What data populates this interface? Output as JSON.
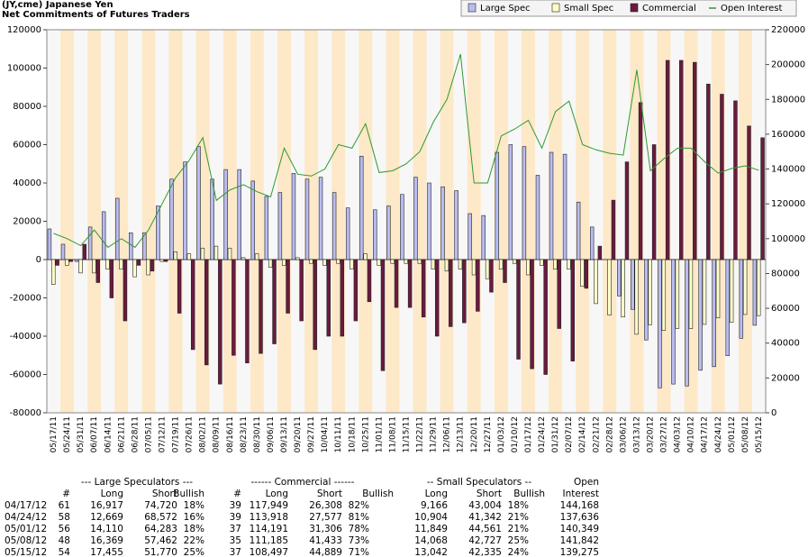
{
  "chart_data": {
    "type": "bar",
    "title": "(JY,cme) Japanese Yen",
    "subtitle": "Net Commitments of Futures Traders",
    "categories": [
      "05/17/11",
      "05/24/11",
      "05/31/11",
      "06/07/11",
      "06/14/11",
      "06/21/11",
      "06/28/11",
      "07/05/11",
      "07/12/11",
      "07/19/11",
      "07/26/11",
      "08/02/11",
      "08/09/11",
      "08/16/11",
      "08/23/11",
      "08/30/11",
      "09/06/11",
      "09/13/11",
      "09/20/11",
      "09/27/11",
      "10/04/11",
      "10/11/11",
      "10/18/11",
      "10/25/11",
      "11/01/11",
      "11/08/11",
      "11/15/11",
      "11/22/11",
      "11/29/11",
      "12/06/11",
      "12/13/11",
      "12/20/11",
      "12/27/11",
      "01/03/12",
      "01/10/12",
      "01/17/12",
      "01/24/12",
      "01/31/12",
      "02/07/12",
      "02/14/12",
      "02/21/12",
      "02/28/12",
      "03/06/12",
      "03/13/12",
      "03/20/12",
      "03/27/12",
      "04/03/12",
      "04/10/12",
      "04/17/12",
      "04/24/12",
      "05/01/12",
      "05/08/12",
      "05/15/12"
    ],
    "series": [
      {
        "name": "Large Spec",
        "color": "#b8bcf0",
        "values": [
          16000,
          8000,
          -1000,
          17000,
          25000,
          32000,
          14000,
          14000,
          28000,
          42000,
          51000,
          59000,
          42000,
          47000,
          47000,
          41000,
          33000,
          35000,
          45000,
          42000,
          43000,
          35000,
          27000,
          54000,
          26000,
          28000,
          34000,
          43000,
          40000,
          38000,
          36000,
          24000,
          23000,
          56000,
          60000,
          59000,
          44000,
          56000,
          55000,
          30000,
          17000,
          0,
          -19000,
          -26000,
          -42000,
          -67000,
          -65000,
          -66000,
          -57803,
          -55903,
          -50173,
          -41093,
          -34315
        ]
      },
      {
        "name": "Small Spec",
        "color": "#ffffcc",
        "values": [
          -13000,
          -3000,
          -7000,
          -7000,
          -5000,
          -5000,
          -9000,
          -8000,
          -1000,
          4000,
          3000,
          6000,
          7000,
          6000,
          1000,
          3000,
          -4000,
          -3000,
          1000,
          -2000,
          -3000,
          -2000,
          -5000,
          3000,
          -3000,
          -2000,
          -2000,
          -2000,
          -5000,
          -6000,
          -5000,
          -8000,
          -10000,
          -5000,
          -2000,
          -8000,
          -3000,
          -5000,
          -5000,
          -14000,
          -23000,
          -29000,
          -30000,
          -39000,
          -34000,
          -37000,
          -36000,
          -36000,
          -33838,
          -30438,
          -32712,
          -28659,
          -29293
        ]
      },
      {
        "name": "Commercial",
        "color": "#6b1a3e",
        "values": [
          -3000,
          -1000,
          8000,
          -12000,
          -20000,
          -32000,
          -3000,
          -6000,
          -1000,
          -28000,
          -47000,
          -55000,
          -65000,
          -50000,
          -54000,
          -49000,
          -44000,
          -28000,
          -32000,
          -47000,
          -40000,
          -40000,
          -32000,
          -22000,
          -58000,
          -25000,
          -25000,
          -30000,
          -40000,
          -35000,
          -33000,
          -27000,
          -17000,
          -12000,
          -52000,
          -57000,
          -60000,
          -36000,
          -53000,
          -15000,
          7000,
          31000,
          51000,
          82000,
          60000,
          104000,
          104000,
          103000,
          91641,
          86341,
          82885,
          69752,
          63608
        ]
      },
      {
        "name": "Open Interest",
        "color": "#2e9a2e",
        "axis": "y2",
        "type": "line",
        "values": [
          103000,
          100000,
          96000,
          105000,
          95000,
          100000,
          95000,
          105000,
          120000,
          135000,
          145000,
          158000,
          122000,
          128000,
          131000,
          127000,
          124000,
          152000,
          137000,
          136000,
          140000,
          154000,
          152000,
          166000,
          138000,
          139000,
          143000,
          150000,
          167000,
          180000,
          206000,
          132000,
          132000,
          159000,
          163000,
          168000,
          152000,
          173000,
          179000,
          154000,
          151000,
          149000,
          148000,
          197000,
          139000,
          146000,
          152000,
          152000,
          144168,
          137636,
          140349,
          141842,
          139275
        ]
      }
    ],
    "ylim": [
      -80000,
      120000
    ],
    "yticks": [
      -80000,
      -60000,
      -40000,
      -20000,
      0,
      20000,
      40000,
      60000,
      80000,
      100000,
      120000
    ],
    "y2lim": [
      0,
      220000
    ],
    "y2ticks": [
      0,
      20000,
      40000,
      60000,
      80000,
      100000,
      120000,
      140000,
      160000,
      180000,
      200000,
      220000
    ],
    "legend": "top-right"
  },
  "table": {
    "groups": [
      "--- Large Speculators ---",
      "------ Commercial ------",
      "-- Small Speculators --",
      "Open"
    ],
    "columns": [
      "#",
      "Long",
      "Short",
      "Bullish",
      "#",
      "Long",
      "Short",
      "Bullish",
      "Long",
      "Short",
      "Bullish",
      "Interest"
    ],
    "rows": [
      [
        "04/17/12",
        "61",
        "16,917",
        "74,720",
        "18%",
        "39",
        "117,949",
        "26,308",
        "82%",
        "9,166",
        "43,004",
        "18%",
        "144,168"
      ],
      [
        "04/24/12",
        "58",
        "12,669",
        "68,572",
        "16%",
        "39",
        "113,918",
        "27,577",
        "81%",
        "10,904",
        "41,342",
        "21%",
        "137,636"
      ],
      [
        "05/01/12",
        "56",
        "14,110",
        "64,283",
        "18%",
        "37",
        "114,191",
        "31,306",
        "78%",
        "11,849",
        "44,561",
        "21%",
        "140,349"
      ],
      [
        "05/08/12",
        "48",
        "16,369",
        "57,462",
        "22%",
        "35",
        "111,185",
        "41,433",
        "73%",
        "14,068",
        "42,727",
        "25%",
        "141,842"
      ],
      [
        "05/15/12",
        "54",
        "17,455",
        "51,770",
        "25%",
        "37",
        "108,497",
        "44,889",
        "71%",
        "13,042",
        "42,335",
        "24%",
        "139,275"
      ]
    ]
  }
}
